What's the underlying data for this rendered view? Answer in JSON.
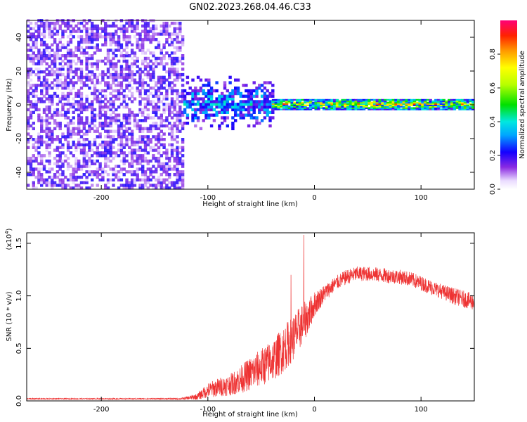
{
  "figure_title": "GN02.2023.268.04.46.C33",
  "chart_data": [
    {
      "type": "heatmap",
      "xlabel": "Height of straight line (km)",
      "ylabel": "Frequency (Hz)",
      "xlim": [
        -270,
        150
      ],
      "ylim": [
        -50,
        50
      ],
      "xticks": [
        -200,
        -100,
        0,
        100
      ],
      "xtick_labels": [
        "-200",
        "-100",
        "0",
        "100"
      ],
      "yticks": [
        -40,
        -20,
        0,
        20,
        40
      ],
      "ytick_labels": [
        "-40",
        "-20",
        "0",
        "20",
        "40"
      ],
      "colorbar": {
        "label": "Normalized spectral amplitude",
        "range": [
          0,
          1
        ],
        "ticks": [
          0.0,
          0.2,
          0.4,
          0.6,
          0.8
        ],
        "tick_labels": [
          "0.0",
          "0.2",
          "0.4",
          "0.6",
          "0.8"
        ]
      },
      "regions": [
        {
          "x_range": [
            -270,
            -123
          ],
          "freq_range": [
            -50,
            50
          ],
          "amplitude_range": [
            0.05,
            0.22
          ]
        },
        {
          "x_range": [
            -123,
            -40
          ],
          "freq_range": [
            -18,
            18
          ],
          "amplitude_range": [
            0.15,
            0.45
          ]
        },
        {
          "x_range": [
            -40,
            150
          ],
          "freq_range": [
            -3,
            3
          ],
          "amplitude_range": [
            0.25,
            0.95
          ]
        }
      ],
      "grid": false
    },
    {
      "type": "line",
      "xlabel": "Height of straight line (km)",
      "ylabel": "SNR (10 * v/v)",
      "y_multiplier_label": "(x10",
      "y_multiplier_exp": "4",
      "y_multiplier_close": ")",
      "xlim": [
        -270,
        150
      ],
      "ylim": [
        0,
        1.6
      ],
      "xticks": [
        -200,
        -100,
        0,
        100
      ],
      "xtick_labels": [
        "-200",
        "-100",
        "0",
        "100"
      ],
      "yticks": [
        0.0,
        0.5,
        1.0,
        1.5
      ],
      "ytick_labels": [
        "0.0",
        "0.5",
        "1.0",
        "1.5"
      ],
      "series_color": "#ee3333",
      "series": [
        {
          "x": [
            -270,
            -240,
            -210,
            -180,
            -150,
            -125,
            -110,
            -100,
            -90,
            -80,
            -70,
            -60,
            -50,
            -40,
            -30,
            -20,
            -12,
            -5,
            0,
            10,
            20,
            30,
            40,
            50,
            60,
            70,
            80,
            90,
            100,
            110,
            120,
            130,
            140,
            150
          ],
          "y": [
            0.02,
            0.02,
            0.02,
            0.02,
            0.02,
            0.02,
            0.04,
            0.1,
            0.13,
            0.15,
            0.2,
            0.26,
            0.32,
            0.38,
            0.48,
            0.6,
            0.72,
            0.82,
            0.92,
            1.03,
            1.12,
            1.18,
            1.21,
            1.21,
            1.2,
            1.19,
            1.18,
            1.16,
            1.12,
            1.08,
            1.04,
            1.0,
            0.97,
            0.94
          ],
          "noise": [
            0.005,
            0.005,
            0.005,
            0.005,
            0.005,
            0.008,
            0.03,
            0.07,
            0.09,
            0.1,
            0.13,
            0.16,
            0.18,
            0.2,
            0.22,
            0.22,
            0.2,
            0.16,
            0.12,
            0.08,
            0.07,
            0.07,
            0.07,
            0.07,
            0.07,
            0.07,
            0.07,
            0.07,
            0.07,
            0.07,
            0.07,
            0.08,
            0.08,
            0.08
          ]
        }
      ],
      "spikes": [
        {
          "x": -10,
          "y": 1.58
        },
        {
          "x": -22,
          "y": 1.2
        }
      ],
      "grid": false
    }
  ]
}
